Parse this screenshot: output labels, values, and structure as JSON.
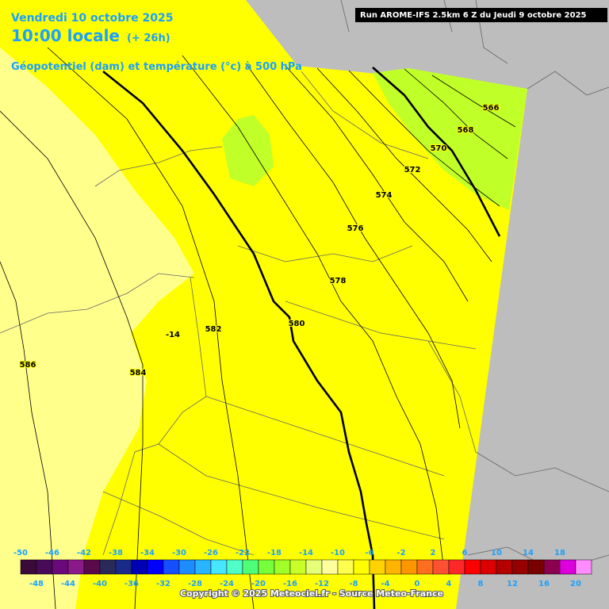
{
  "header": {
    "date": "Vendredi 10 octobre 2025",
    "time": "10:00 locale",
    "lead": "(+ 26h)",
    "parameter": "Géopotentiel (dam) et température (°c) à 500 hPa",
    "run": "Run AROME-IFS 2.5km 6 Z du Jeudi 9 octobre 2025"
  },
  "contour_labels": [
    "566",
    "568",
    "570",
    "572",
    "574",
    "576",
    "578",
    "580",
    "582",
    "584",
    "586",
    "-14"
  ],
  "colorbar": {
    "top_labels": [
      -50,
      -46,
      -42,
      -38,
      -34,
      -30,
      -26,
      -22,
      -18,
      -14,
      -10,
      -6,
      -2,
      2,
      6,
      10,
      14,
      18
    ],
    "bottom_labels": [
      -48,
      -44,
      -40,
      -36,
      -32,
      -28,
      -24,
      -20,
      -16,
      -12,
      -8,
      -4,
      0,
      4,
      8,
      12,
      16,
      20
    ],
    "colors": [
      "#3a0a3a",
      "#4a0a5a",
      "#6a0a7a",
      "#8a1a8a",
      "#5a0a4a",
      "#2a2a5a",
      "#1a2a8a",
      "#0000b4",
      "#0000ff",
      "#1450ff",
      "#1e8cff",
      "#28b4ff",
      "#46e6ff",
      "#50ffc8",
      "#50ff78",
      "#78ff3c",
      "#a0ff28",
      "#c8ff28",
      "#e6ff78",
      "#ffffa0",
      "#ffff50",
      "#ffff00",
      "#ffd200",
      "#ffb400",
      "#ff9600",
      "#ff6e1e",
      "#ff5032",
      "#ff2828",
      "#ff0000",
      "#dc0000",
      "#b40000",
      "#960000",
      "#780000",
      "#8c0050",
      "#dc00dc",
      "#ff8cff"
    ]
  },
  "footer": {
    "copyright": "Copyright © 2025 Meteociel.fr - Source Meteo-France"
  }
}
